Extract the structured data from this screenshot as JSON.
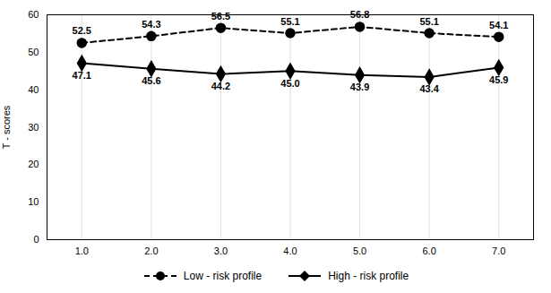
{
  "chart_data": {
    "type": "line",
    "ylabel": "T - scores",
    "x": [
      1,
      2,
      3,
      4,
      5,
      6,
      7
    ],
    "series": [
      {
        "name": "Low - risk profile",
        "color": "#000000",
        "marker": "circle",
        "line_style": "dashed",
        "values": [
          52.5,
          54.3,
          56.5,
          55.1,
          56.8,
          55.1,
          54.1
        ]
      },
      {
        "name": "High - risk profile",
        "color": "#000000",
        "marker": "diamond",
        "line_style": "solid",
        "values": [
          47.1,
          45.6,
          44.2,
          45.0,
          43.9,
          43.4,
          45.9
        ],
        "value_labels": [
          "47.1",
          "45.6",
          "44.2",
          "45.0",
          "43.9",
          "43.4",
          "45.9"
        ]
      }
    ],
    "xlim": [
      0.5,
      7.5
    ],
    "xticks": [
      1,
      2,
      3,
      4,
      5,
      6,
      7
    ],
    "ylim": [
      0,
      60
    ],
    "yticks": [
      0,
      10,
      20,
      30,
      40,
      50,
      60
    ],
    "grid": "x",
    "legend": "bottom",
    "data_labels": true
  }
}
